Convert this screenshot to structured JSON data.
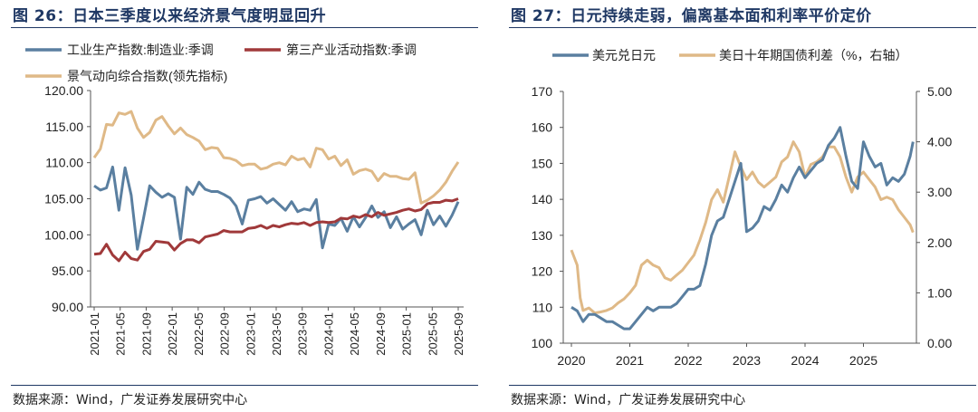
{
  "figures": [
    {
      "title": "图 26：日本三季度以来经济景气度明显回升",
      "source": "数据来源：Wind，广发证券发展研究中心"
    },
    {
      "title": "图 27：日元持续走弱，偏离基本面和利率平价定价",
      "source": "数据来源：Wind，广发证券发展研究中心"
    }
  ],
  "colors": {
    "steel_blue": "#5a7fa0",
    "dark_red": "#a0393a",
    "tan": "#dfb987",
    "title_navy": "#1f3864"
  },
  "chart_data": [
    {
      "type": "line",
      "title": "图 26：日本三季度以来经济景气度明显回升",
      "ylim": [
        90,
        120
      ],
      "y_ticks": [
        "90.00",
        "95.00",
        "100.00",
        "105.00",
        "110.00",
        "115.00",
        "120.00"
      ],
      "x_tick_labels": [
        "2021-01",
        "2021-05",
        "2021-09",
        "2022-01",
        "2022-05",
        "2022-09",
        "2023-01",
        "2023-05",
        "2023-09",
        "2024-01",
        "2024-05",
        "2024-09",
        "2025-01",
        "2025-05",
        "2025-09"
      ],
      "legend": [
        "工业生产指数:制造业:季调",
        "第三产业活动指数:季调",
        "景气动向综合指数(领先指标)"
      ],
      "series": [
        {
          "name": "工业生产指数:制造业:季调",
          "color": "#5a7fa0",
          "values": [
            106.8,
            106.2,
            106.5,
            109.4,
            103.4,
            109.3,
            105.5,
            98.0,
            102.3,
            106.8,
            105.9,
            105.2,
            105.7,
            105.2,
            99.4,
            106.6,
            105.6,
            107.3,
            106.3,
            106.0,
            106.0,
            105.6,
            105.1,
            104.0,
            101.5,
            104.8,
            105.0,
            105.3,
            104.4,
            105.0,
            104.2,
            103.4,
            104.6,
            103.2,
            103.6,
            103.4,
            104.9,
            98.2,
            101.5,
            101.3,
            102.3,
            100.5,
            102.5,
            101.1,
            102.4,
            104.0,
            102.4,
            103.2,
            101.0,
            102.5,
            100.8,
            101.5,
            102.1,
            100.0,
            103.4,
            101.4,
            102.6,
            101.2,
            102.7,
            104.6
          ]
        },
        {
          "name": "第三产业活动指数:季调",
          "color": "#a0393a",
          "values": [
            97.3,
            97.4,
            98.7,
            97.2,
            96.4,
            97.6,
            96.7,
            96.5,
            97.7,
            98.0,
            99.1,
            99.0,
            98.9,
            97.9,
            98.8,
            99.3,
            99.3,
            98.9,
            99.7,
            99.9,
            100.1,
            100.6,
            100.4,
            100.4,
            100.4,
            100.9,
            101.0,
            101.3,
            100.9,
            101.3,
            101.1,
            101.4,
            101.6,
            101.5,
            101.7,
            101.3,
            101.7,
            101.8,
            101.7,
            101.8,
            102.3,
            102.2,
            102.6,
            102.4,
            102.8,
            102.5,
            103.1,
            102.7,
            102.9,
            103.1,
            103.4,
            103.6,
            103.3,
            103.5,
            104.3,
            104.5,
            104.5,
            104.8,
            104.7,
            105.0
          ]
        },
        {
          "name": "景气动向综合指数(领先指标)",
          "color": "#dfb987",
          "values": [
            110.7,
            111.9,
            115.3,
            115.2,
            116.9,
            116.7,
            117.1,
            114.8,
            113.5,
            114.2,
            115.9,
            116.4,
            115.1,
            114.0,
            114.8,
            113.9,
            113.5,
            113.0,
            111.8,
            112.1,
            112.0,
            110.7,
            110.6,
            110.3,
            109.6,
            109.8,
            109.8,
            109.1,
            109.3,
            109.8,
            110.0,
            109.7,
            110.9,
            110.4,
            110.6,
            109.4,
            112.0,
            111.8,
            110.5,
            110.9,
            109.6,
            110.4,
            108.4,
            108.9,
            109.1,
            108.8,
            107.5,
            108.5,
            108.1,
            108.1,
            107.8,
            107.7,
            108.6,
            104.4,
            104.8,
            105.4,
            106.2,
            107.3,
            108.8,
            110.1
          ]
        }
      ]
    },
    {
      "type": "line",
      "title": "图 27：日元持续走弱，偏离基本面和利率平价定价",
      "ylim_left": [
        100,
        170
      ],
      "ylim_right": [
        0,
        5
      ],
      "y_ticks_left": [
        "100",
        "110",
        "120",
        "130",
        "140",
        "150",
        "160",
        "170"
      ],
      "y_ticks_right": [
        "0.00",
        "1.00",
        "2.00",
        "3.00",
        "4.00",
        "5.00"
      ],
      "x_tick_labels": [
        "2020",
        "2021",
        "2022",
        "2023",
        "2024",
        "2025"
      ],
      "legend": [
        "美元兑日元",
        "美日十年期国债利差（%，右轴）"
      ],
      "series": [
        {
          "name": "美元兑日元",
          "axis": "left",
          "color": "#5a7fa0",
          "x": [
            2020.0,
            2020.1,
            2020.2,
            2020.3,
            2020.4,
            2020.5,
            2020.6,
            2020.7,
            2020.8,
            2020.9,
            2021.0,
            2021.1,
            2021.2,
            2021.3,
            2021.4,
            2021.5,
            2021.6,
            2021.7,
            2021.8,
            2021.9,
            2022.0,
            2022.1,
            2022.2,
            2022.3,
            2022.4,
            2022.5,
            2022.6,
            2022.7,
            2022.8,
            2022.9,
            2023.0,
            2023.1,
            2023.2,
            2023.3,
            2023.4,
            2023.5,
            2023.6,
            2023.7,
            2023.8,
            2023.9,
            2024.0,
            2024.1,
            2024.2,
            2024.3,
            2024.4,
            2024.5,
            2024.6,
            2024.7,
            2024.8,
            2024.9,
            2025.0,
            2025.1,
            2025.2,
            2025.3,
            2025.4,
            2025.5,
            2025.6,
            2025.7,
            2025.8,
            2025.85
          ],
          "values": [
            110,
            109,
            106,
            108,
            108,
            107,
            106,
            106,
            105,
            104,
            104,
            106,
            108,
            110,
            109,
            110,
            110,
            110,
            111,
            113,
            115,
            115,
            116,
            122,
            130,
            134,
            135,
            140,
            145,
            150,
            131,
            132,
            134,
            138,
            137,
            140,
            144,
            142,
            146,
            149,
            146,
            148,
            150,
            151,
            155,
            157,
            160,
            152,
            145,
            143,
            156,
            152,
            149,
            150,
            144,
            146,
            145,
            147,
            152,
            156
          ]
        },
        {
          "name": "美日十年期国债利差（%，右轴）",
          "axis": "right",
          "color": "#dfb987",
          "x": [
            2020.0,
            2020.05,
            2020.1,
            2020.15,
            2020.2,
            2020.3,
            2020.4,
            2020.5,
            2020.6,
            2020.7,
            2020.8,
            2020.9,
            2021.0,
            2021.1,
            2021.2,
            2021.3,
            2021.4,
            2021.5,
            2021.6,
            2021.7,
            2021.8,
            2021.9,
            2022.0,
            2022.1,
            2022.2,
            2022.3,
            2022.4,
            2022.5,
            2022.6,
            2022.7,
            2022.8,
            2022.9,
            2023.0,
            2023.1,
            2023.2,
            2023.3,
            2023.4,
            2023.5,
            2023.6,
            2023.7,
            2023.8,
            2023.9,
            2024.0,
            2024.1,
            2024.2,
            2024.3,
            2024.4,
            2024.5,
            2024.6,
            2024.7,
            2024.8,
            2024.9,
            2025.0,
            2025.1,
            2025.2,
            2025.3,
            2025.4,
            2025.5,
            2025.6,
            2025.7,
            2025.8,
            2025.85
          ],
          "values": [
            1.85,
            1.7,
            1.55,
            0.9,
            0.65,
            0.7,
            0.6,
            0.62,
            0.65,
            0.7,
            0.8,
            0.88,
            1.0,
            1.15,
            1.55,
            1.65,
            1.55,
            1.5,
            1.3,
            1.25,
            1.35,
            1.45,
            1.6,
            1.75,
            2.05,
            2.4,
            2.85,
            3.05,
            2.8,
            3.3,
            3.8,
            3.5,
            3.25,
            3.4,
            3.2,
            3.1,
            3.2,
            3.3,
            3.6,
            3.7,
            4.0,
            3.8,
            3.3,
            3.55,
            3.6,
            3.7,
            3.9,
            3.9,
            3.7,
            3.3,
            3.0,
            3.3,
            3.4,
            3.25,
            3.1,
            2.85,
            2.9,
            2.85,
            2.65,
            2.5,
            2.35,
            2.2
          ]
        }
      ]
    }
  ]
}
